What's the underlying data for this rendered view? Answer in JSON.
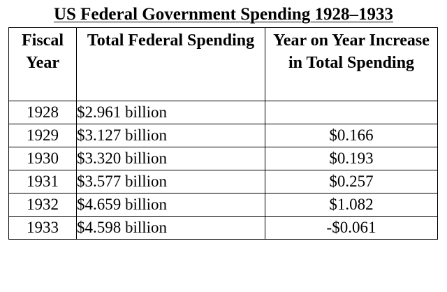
{
  "title": "US Federal Government Spending 1928–1933",
  "headers": {
    "fiscal_year": "Fiscal Year",
    "total_spending": "Total Federal Spending",
    "increase": "Year on Year Increase in Total Spending"
  },
  "rows": [
    {
      "year": "1928",
      "spending": "$2.961 billion",
      "increase": ""
    },
    {
      "year": "1929",
      "spending": "$3.127 billion",
      "increase": "$0.166"
    },
    {
      "year": "1930",
      "spending": "$3.320 billion",
      "increase": "$0.193"
    },
    {
      "year": "1931",
      "spending": "$3.577 billion",
      "increase": "$0.257"
    },
    {
      "year": "1932",
      "spending": "$4.659 billion",
      "increase": "$1.082"
    },
    {
      "year": "1933",
      "spending": "$4.598 billion",
      "increase": "-$0.061"
    }
  ]
}
